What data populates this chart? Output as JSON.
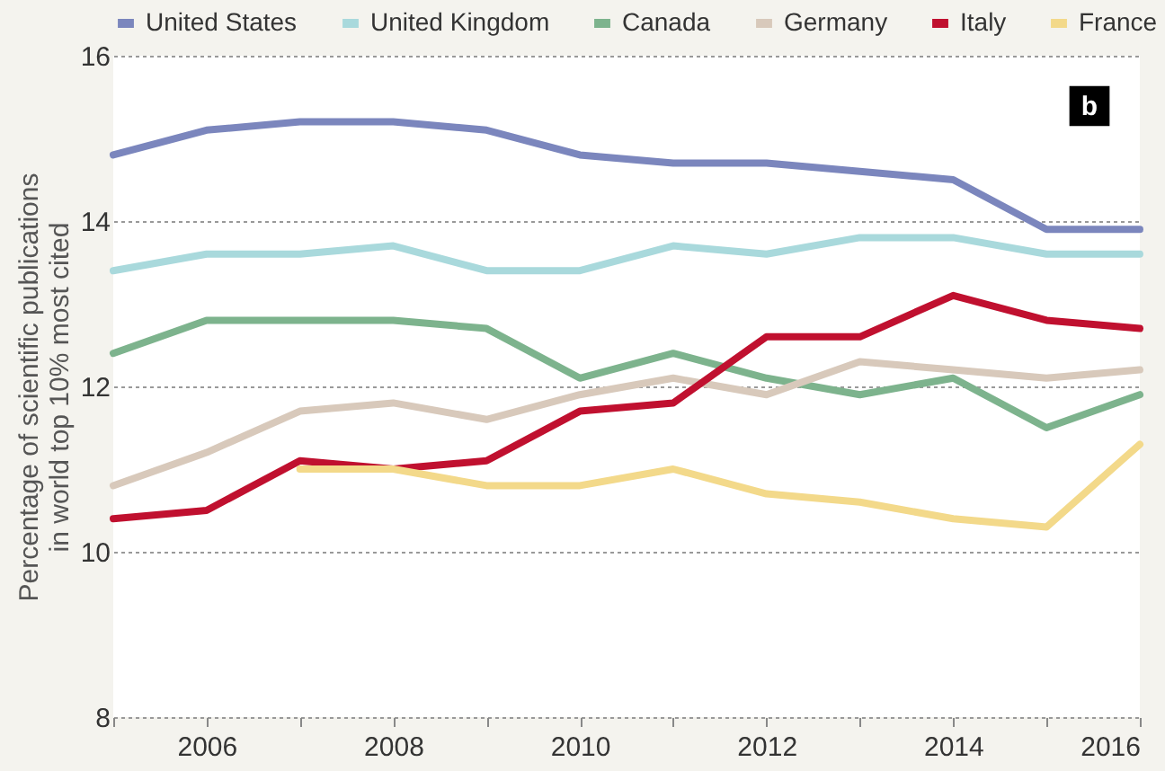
{
  "chart_data": {
    "type": "line",
    "ylabel": "Percentage of scientific publications in world top 10% most cited",
    "annotations": [
      "b"
    ],
    "x": [
      2005,
      2006,
      2007,
      2008,
      2009,
      2010,
      2011,
      2012,
      2013,
      2014,
      2015,
      2016
    ],
    "series": [
      {
        "name": "United States",
        "color": "#7b86bd",
        "values": [
          14.8,
          15.1,
          15.2,
          15.2,
          15.1,
          14.8,
          14.7,
          14.7,
          14.6,
          14.5,
          13.9,
          13.9
        ]
      },
      {
        "name": "United Kingdom",
        "color": "#a9d9dc",
        "values": [
          13.4,
          13.6,
          13.6,
          13.7,
          13.4,
          13.4,
          13.7,
          13.6,
          13.8,
          13.8,
          13.6,
          13.6
        ]
      },
      {
        "name": "Canada",
        "color": "#7db38d",
        "values": [
          12.4,
          12.8,
          12.8,
          12.8,
          12.7,
          12.1,
          12.4,
          12.1,
          11.9,
          12.1,
          11.5,
          11.9
        ]
      },
      {
        "name": "Germany",
        "color": "#d8c9bb",
        "values": [
          10.8,
          11.2,
          11.7,
          11.8,
          11.6,
          11.9,
          12.1,
          11.9,
          12.3,
          12.2,
          12.1,
          12.2
        ]
      },
      {
        "name": "Italy",
        "color": "#c0102f",
        "values": [
          10.4,
          10.5,
          11.1,
          11.0,
          11.1,
          11.7,
          11.8,
          12.6,
          12.6,
          13.1,
          12.8,
          12.7
        ]
      },
      {
        "name": "France",
        "color": "#f3d98a",
        "values": [
          null,
          null,
          11.0,
          11.0,
          10.8,
          10.8,
          11.0,
          10.7,
          10.6,
          10.4,
          10.3,
          11.3
        ]
      }
    ],
    "xlim": [
      2005,
      2016
    ],
    "xticks": [
      {
        "value": 2005,
        "label": null
      },
      2006,
      {
        "value": 2007,
        "label": null
      },
      2008,
      {
        "value": 2009,
        "label": null
      },
      2010,
      {
        "value": 2011,
        "label": null
      },
      2012,
      {
        "value": 2013,
        "label": null
      },
      2014,
      {
        "value": 2015,
        "label": null
      },
      2016
    ],
    "ylim": [
      8,
      16
    ],
    "yticks": [
      8,
      10,
      12,
      14,
      16
    ],
    "grid": "y",
    "legend": "top",
    "line_style": "solid",
    "marker": "none"
  }
}
